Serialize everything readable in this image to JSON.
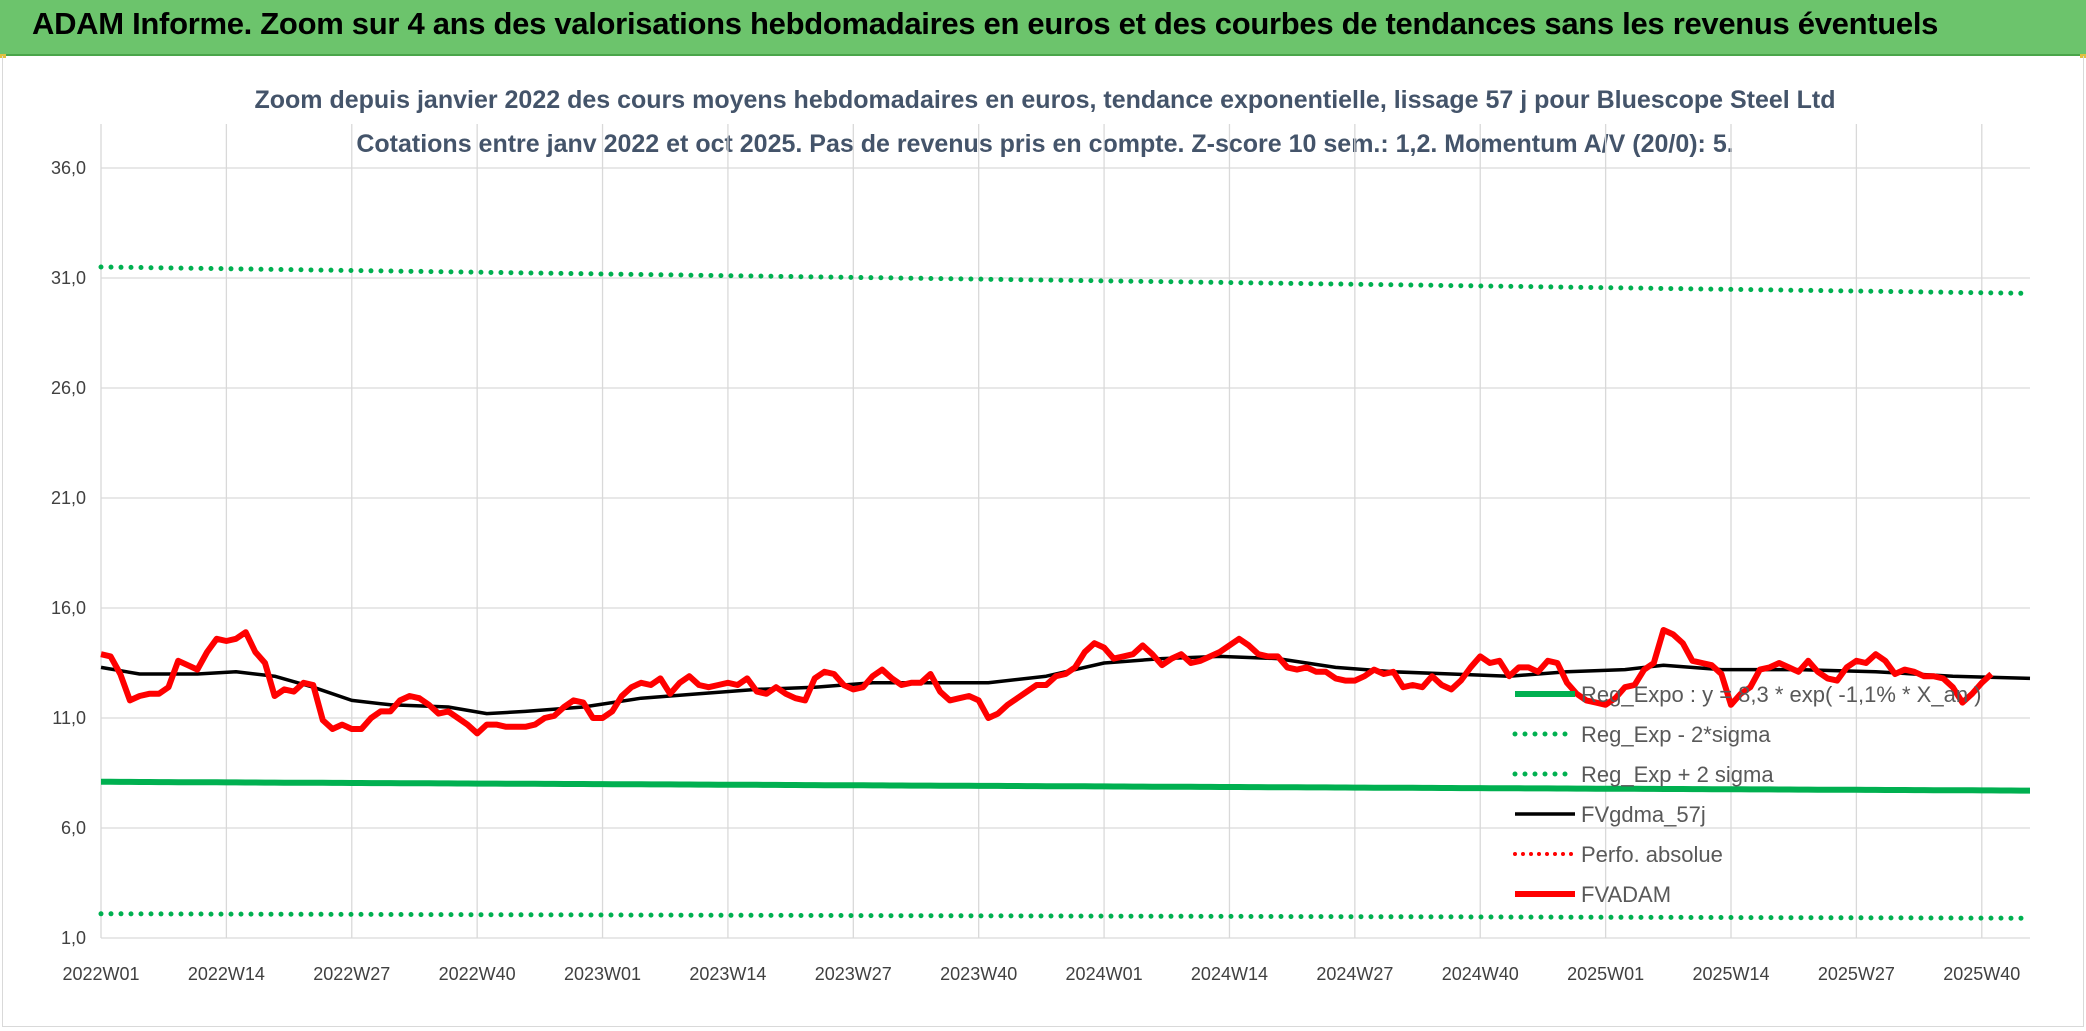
{
  "banner": {
    "title": "ADAM Informe. Zoom sur 4 ans des valorisations hebdomadaires en euros et des courbes de tendances sans les revenus éventuels"
  },
  "colors": {
    "banner_bg": "#6cc46c",
    "green": "#00b050",
    "black": "#000000",
    "red": "#ff0000",
    "grid": "#d9d9d9"
  },
  "chart_data": {
    "type": "line",
    "title": "Zoom depuis janvier 2022 des cours moyens hebdomadaires en euros, tendance exponentielle, lissage 57 j pour Bluescope Steel Ltd",
    "subtitle": "Cotations entre janv 2022 et oct 2025. Pas de revenus pris en compte. Z-score 10 sem.: 1,2. Momentum A/V (20/0): 5.",
    "xlabel": "",
    "ylabel": "",
    "ylim": [
      1.0,
      38.0
    ],
    "y_ticks": [
      "1,0",
      "6,0",
      "11,0",
      "16,0",
      "21,0",
      "26,0",
      "31,0",
      "36,0"
    ],
    "y_tick_values": [
      1,
      6,
      11,
      16,
      21,
      26,
      31,
      36
    ],
    "x_ticks": [
      "2022W01",
      "2022W14",
      "2022W27",
      "2022W40",
      "2023W01",
      "2023W14",
      "2023W27",
      "2023W40",
      "2024W01",
      "2024W14",
      "2024W27",
      "2024W40",
      "2025W01",
      "2025W14",
      "2025W27",
      "2025W40"
    ],
    "x_tick_index": [
      0,
      13,
      26,
      39,
      52,
      65,
      78,
      91,
      104,
      117,
      130,
      143,
      156,
      169,
      182,
      195
    ],
    "n_weeks": 201,
    "grid": true,
    "legend_position": "right",
    "series": [
      {
        "name": "Reg_Expo : y = 8,3 * exp( -1,1% * X_an )",
        "style": "solid-green-thick",
        "kind": "expo",
        "start": 8.1,
        "end": 7.7
      },
      {
        "name": "Reg_Exp - 2*sigma",
        "style": "dotted-green",
        "kind": "expo",
        "start": 2.1,
        "end": 1.9
      },
      {
        "name": "Reg_Exp + 2 sigma",
        "style": "dotted-green",
        "kind": "expo",
        "start": 31.5,
        "end": 30.3
      },
      {
        "name": "FVgdma_57j",
        "style": "solid-black",
        "kind": "points",
        "points": [
          [
            0,
            13.3
          ],
          [
            4,
            13.0
          ],
          [
            10,
            13.0
          ],
          [
            14,
            13.1
          ],
          [
            18,
            12.9
          ],
          [
            22,
            12.4
          ],
          [
            26,
            11.8
          ],
          [
            30,
            11.6
          ],
          [
            36,
            11.5
          ],
          [
            40,
            11.2
          ],
          [
            44,
            11.3
          ],
          [
            50,
            11.5
          ],
          [
            56,
            11.9
          ],
          [
            62,
            12.1
          ],
          [
            68,
            12.3
          ],
          [
            74,
            12.4
          ],
          [
            80,
            12.6
          ],
          [
            86,
            12.6
          ],
          [
            92,
            12.6
          ],
          [
            98,
            12.9
          ],
          [
            104,
            13.5
          ],
          [
            110,
            13.7
          ],
          [
            116,
            13.8
          ],
          [
            122,
            13.7
          ],
          [
            128,
            13.3
          ],
          [
            134,
            13.1
          ],
          [
            140,
            13.0
          ],
          [
            146,
            12.9
          ],
          [
            152,
            13.1
          ],
          [
            158,
            13.2
          ],
          [
            162,
            13.4
          ],
          [
            168,
            13.2
          ],
          [
            176,
            13.2
          ],
          [
            184,
            13.1
          ],
          [
            192,
            12.9
          ],
          [
            200,
            12.8
          ]
        ]
      },
      {
        "name": "Perfo. absolue",
        "style": "dotted-red",
        "kind": "none"
      },
      {
        "name": "FVADAM",
        "style": "solid-red-thick",
        "kind": "points",
        "points": [
          [
            0,
            13.9
          ],
          [
            1,
            13.8
          ],
          [
            2,
            13.0
          ],
          [
            3,
            11.8
          ],
          [
            4,
            12.0
          ],
          [
            5,
            12.1
          ],
          [
            6,
            12.1
          ],
          [
            7,
            12.4
          ],
          [
            8,
            13.6
          ],
          [
            9,
            13.4
          ],
          [
            10,
            13.2
          ],
          [
            11,
            14.0
          ],
          [
            12,
            14.6
          ],
          [
            13,
            14.5
          ],
          [
            14,
            14.6
          ],
          [
            15,
            14.9
          ],
          [
            16,
            14.0
          ],
          [
            17,
            13.5
          ],
          [
            18,
            12.0
          ],
          [
            19,
            12.3
          ],
          [
            20,
            12.2
          ],
          [
            21,
            12.6
          ],
          [
            22,
            12.5
          ],
          [
            23,
            10.9
          ],
          [
            24,
            10.5
          ],
          [
            25,
            10.7
          ],
          [
            26,
            10.5
          ],
          [
            27,
            10.5
          ],
          [
            28,
            11.0
          ],
          [
            29,
            11.3
          ],
          [
            30,
            11.3
          ],
          [
            31,
            11.8
          ],
          [
            32,
            12.0
          ],
          [
            33,
            11.9
          ],
          [
            34,
            11.6
          ],
          [
            35,
            11.2
          ],
          [
            36,
            11.3
          ],
          [
            37,
            11.0
          ],
          [
            38,
            10.7
          ],
          [
            39,
            10.3
          ],
          [
            40,
            10.7
          ],
          [
            41,
            10.7
          ],
          [
            42,
            10.6
          ],
          [
            43,
            10.6
          ],
          [
            44,
            10.6
          ],
          [
            45,
            10.7
          ],
          [
            46,
            11.0
          ],
          [
            47,
            11.1
          ],
          [
            48,
            11.5
          ],
          [
            49,
            11.8
          ],
          [
            50,
            11.7
          ],
          [
            51,
            11.0
          ],
          [
            52,
            11.0
          ],
          [
            53,
            11.3
          ],
          [
            54,
            12.0
          ],
          [
            55,
            12.4
          ],
          [
            56,
            12.6
          ],
          [
            57,
            12.5
          ],
          [
            58,
            12.8
          ],
          [
            59,
            12.1
          ],
          [
            60,
            12.6
          ],
          [
            61,
            12.9
          ],
          [
            62,
            12.5
          ],
          [
            63,
            12.4
          ],
          [
            64,
            12.5
          ],
          [
            65,
            12.6
          ],
          [
            66,
            12.5
          ],
          [
            67,
            12.8
          ],
          [
            68,
            12.2
          ],
          [
            69,
            12.1
          ],
          [
            70,
            12.4
          ],
          [
            71,
            12.1
          ],
          [
            72,
            11.9
          ],
          [
            73,
            11.8
          ],
          [
            74,
            12.8
          ],
          [
            75,
            13.1
          ],
          [
            76,
            13.0
          ],
          [
            77,
            12.5
          ],
          [
            78,
            12.3
          ],
          [
            79,
            12.4
          ],
          [
            80,
            12.9
          ],
          [
            81,
            13.2
          ],
          [
            82,
            12.8
          ],
          [
            83,
            12.5
          ],
          [
            84,
            12.6
          ],
          [
            85,
            12.6
          ],
          [
            86,
            13.0
          ],
          [
            87,
            12.2
          ],
          [
            88,
            11.8
          ],
          [
            89,
            11.9
          ],
          [
            90,
            12.0
          ],
          [
            91,
            11.8
          ],
          [
            92,
            11.0
          ],
          [
            93,
            11.2
          ],
          [
            94,
            11.6
          ],
          [
            95,
            11.9
          ],
          [
            96,
            12.2
          ],
          [
            97,
            12.5
          ],
          [
            98,
            12.5
          ],
          [
            99,
            12.9
          ],
          [
            100,
            13.0
          ],
          [
            101,
            13.3
          ],
          [
            102,
            14.0
          ],
          [
            103,
            14.4
          ],
          [
            104,
            14.2
          ],
          [
            105,
            13.7
          ],
          [
            106,
            13.8
          ],
          [
            107,
            13.9
          ],
          [
            108,
            14.3
          ],
          [
            109,
            13.9
          ],
          [
            110,
            13.4
          ],
          [
            111,
            13.7
          ],
          [
            112,
            13.9
          ],
          [
            113,
            13.5
          ],
          [
            114,
            13.6
          ],
          [
            115,
            13.8
          ],
          [
            116,
            14.0
          ],
          [
            117,
            14.3
          ],
          [
            118,
            14.6
          ],
          [
            119,
            14.3
          ],
          [
            120,
            13.9
          ],
          [
            121,
            13.8
          ],
          [
            122,
            13.8
          ],
          [
            123,
            13.3
          ],
          [
            124,
            13.2
          ],
          [
            125,
            13.3
          ],
          [
            126,
            13.1
          ],
          [
            127,
            13.1
          ],
          [
            128,
            12.8
          ],
          [
            129,
            12.7
          ],
          [
            130,
            12.7
          ],
          [
            131,
            12.9
          ],
          [
            132,
            13.2
          ],
          [
            133,
            13.0
          ],
          [
            134,
            13.1
          ],
          [
            135,
            12.4
          ],
          [
            136,
            12.5
          ],
          [
            137,
            12.4
          ],
          [
            138,
            12.9
          ],
          [
            139,
            12.5
          ],
          [
            140,
            12.3
          ],
          [
            141,
            12.7
          ],
          [
            142,
            13.3
          ],
          [
            143,
            13.8
          ],
          [
            144,
            13.5
          ],
          [
            145,
            13.6
          ],
          [
            146,
            12.9
          ],
          [
            147,
            13.3
          ],
          [
            148,
            13.3
          ],
          [
            149,
            13.1
          ],
          [
            150,
            13.6
          ],
          [
            151,
            13.5
          ],
          [
            152,
            12.6
          ],
          [
            153,
            12.1
          ],
          [
            154,
            11.8
          ],
          [
            155,
            11.7
          ],
          [
            156,
            11.6
          ],
          [
            157,
            11.9
          ],
          [
            158,
            12.4
          ],
          [
            159,
            12.5
          ],
          [
            160,
            13.2
          ],
          [
            161,
            13.5
          ],
          [
            162,
            15.0
          ],
          [
            163,
            14.8
          ],
          [
            164,
            14.4
          ],
          [
            165,
            13.6
          ],
          [
            166,
            13.5
          ],
          [
            167,
            13.4
          ],
          [
            168,
            13.0
          ],
          [
            169,
            11.6
          ],
          [
            170,
            12.1
          ],
          [
            171,
            12.4
          ],
          [
            172,
            13.2
          ],
          [
            173,
            13.3
          ],
          [
            174,
            13.5
          ],
          [
            175,
            13.3
          ],
          [
            176,
            13.1
          ],
          [
            177,
            13.6
          ],
          [
            178,
            13.1
          ],
          [
            179,
            12.8
          ],
          [
            180,
            12.7
          ],
          [
            181,
            13.3
          ],
          [
            182,
            13.6
          ],
          [
            183,
            13.5
          ],
          [
            184,
            13.9
          ],
          [
            185,
            13.6
          ],
          [
            186,
            13.0
          ],
          [
            187,
            13.2
          ],
          [
            188,
            13.1
          ],
          [
            189,
            12.9
          ],
          [
            190,
            12.9
          ],
          [
            191,
            12.8
          ],
          [
            192,
            12.4
          ],
          [
            193,
            11.7
          ],
          [
            194,
            12.1
          ],
          [
            195,
            12.6
          ],
          [
            196,
            13.0
          ]
        ]
      }
    ]
  }
}
